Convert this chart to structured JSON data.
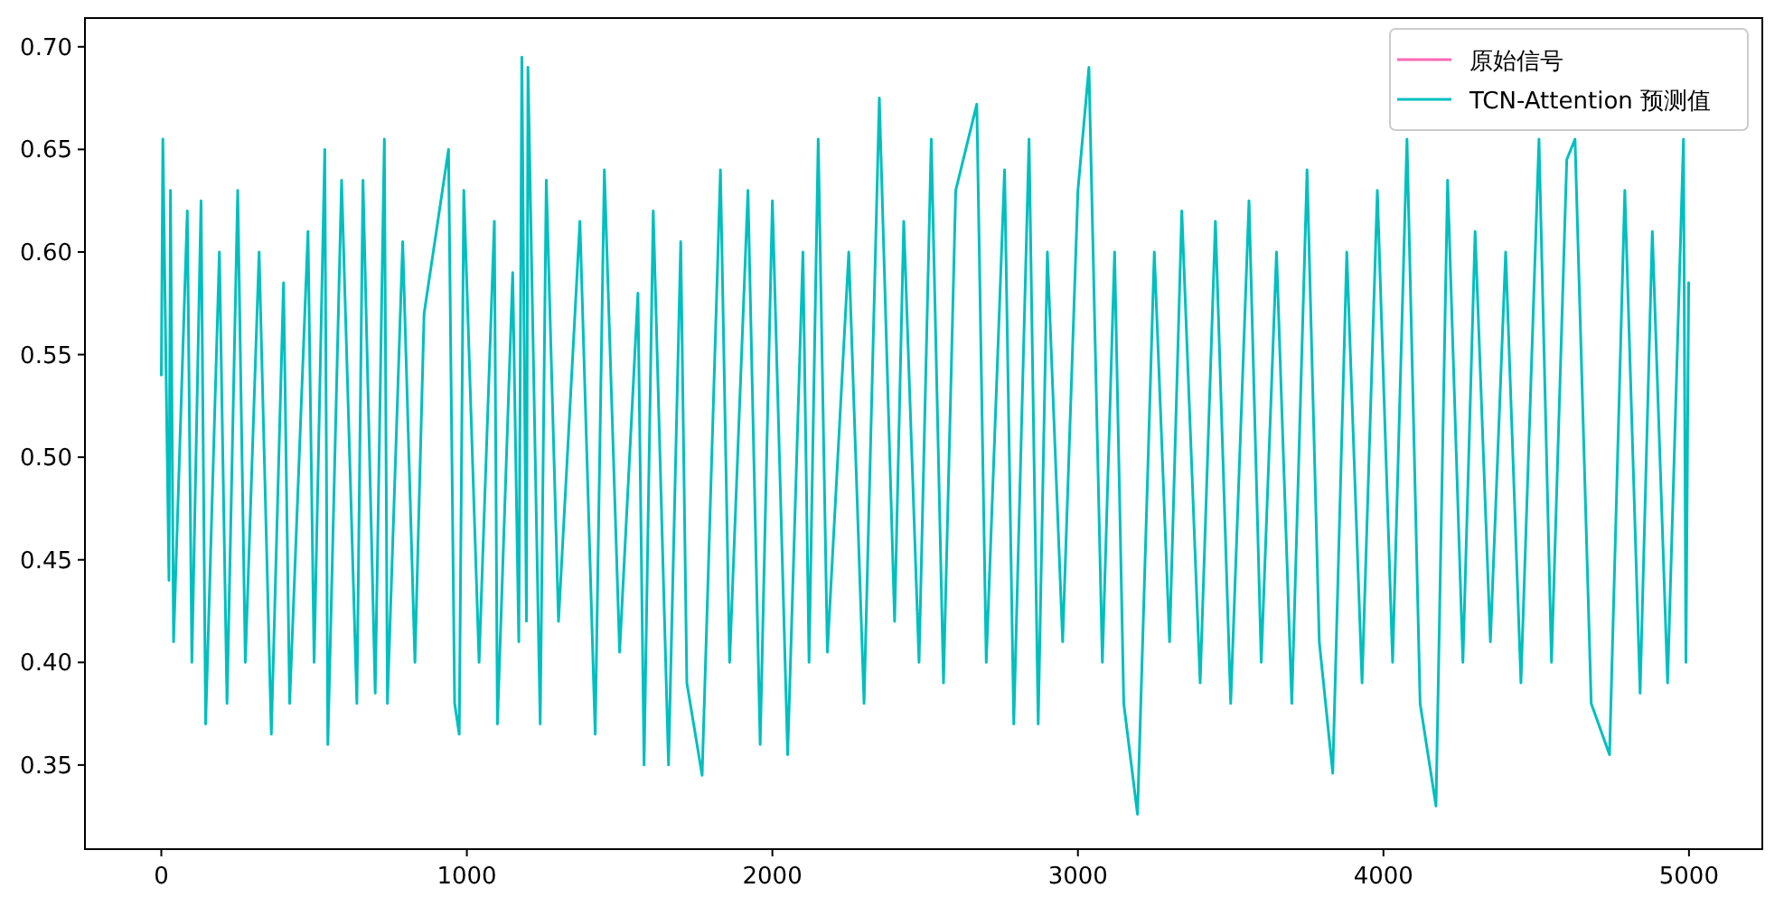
{
  "chart_data": {
    "type": "line",
    "xlim": [
      -250,
      5240
    ],
    "ylim": [
      0.309,
      0.714
    ],
    "xticks": [
      0,
      1000,
      2000,
      3000,
      4000,
      5000
    ],
    "yticks": [
      {
        "value": 0.35,
        "label": "0.35"
      },
      {
        "value": 0.4,
        "label": "0.40"
      },
      {
        "value": 0.45,
        "label": "0.45"
      },
      {
        "value": 0.5,
        "label": "0.50"
      },
      {
        "value": 0.55,
        "label": "0.55"
      },
      {
        "value": 0.6,
        "label": "0.60"
      },
      {
        "value": 0.65,
        "label": "0.65"
      },
      {
        "value": 0.7,
        "label": "0.70"
      }
    ],
    "legend": "top right",
    "series": [
      {
        "name": "原始信号",
        "color": "#ff69b4"
      },
      {
        "name": "TCN-Attention 预测值",
        "color": "#00bfbf",
        "x": [
          0,
          5,
          25,
          30,
          40,
          85,
          100,
          130,
          145,
          190,
          215,
          250,
          275,
          320,
          360,
          400,
          420,
          480,
          500,
          535,
          545,
          590,
          640,
          660,
          700,
          730,
          740,
          790,
          830,
          860,
          940,
          960,
          975,
          990,
          1040,
          1090,
          1100,
          1150,
          1170,
          1180,
          1195,
          1200,
          1240,
          1260,
          1300,
          1370,
          1420,
          1450,
          1500,
          1560,
          1580,
          1610,
          1660,
          1700,
          1720,
          1770,
          1830,
          1860,
          1920,
          1960,
          2000,
          2050,
          2100,
          2120,
          2150,
          2180,
          2250,
          2300,
          2350,
          2400,
          2430,
          2480,
          2520,
          2560,
          2600,
          2669,
          2700,
          2760,
          2790,
          2840,
          2870,
          2900,
          2950,
          3000,
          3036,
          3080,
          3120,
          3150,
          3195,
          3250,
          3300,
          3340,
          3400,
          3450,
          3500,
          3560,
          3600,
          3650,
          3700,
          3750,
          3790,
          3834,
          3880,
          3930,
          3980,
          4030,
          4077,
          4120,
          4172,
          4210,
          4260,
          4300,
          4350,
          4400,
          4450,
          4509,
          4550,
          4600,
          4627,
          4680,
          4740,
          4790,
          4840,
          4880,
          4930,
          4982,
          4990,
          4999
        ],
        "values": [
          0.54,
          0.655,
          0.44,
          0.63,
          0.41,
          0.62,
          0.4,
          0.625,
          0.37,
          0.6,
          0.38,
          0.63,
          0.4,
          0.6,
          0.365,
          0.585,
          0.38,
          0.61,
          0.4,
          0.65,
          0.36,
          0.635,
          0.38,
          0.635,
          0.385,
          0.655,
          0.38,
          0.605,
          0.4,
          0.57,
          0.65,
          0.38,
          0.365,
          0.63,
          0.4,
          0.615,
          0.37,
          0.59,
          0.41,
          0.695,
          0.42,
          0.69,
          0.37,
          0.635,
          0.42,
          0.615,
          0.365,
          0.64,
          0.405,
          0.58,
          0.35,
          0.62,
          0.35,
          0.605,
          0.39,
          0.345,
          0.64,
          0.4,
          0.63,
          0.36,
          0.625,
          0.355,
          0.6,
          0.4,
          0.655,
          0.405,
          0.6,
          0.38,
          0.675,
          0.42,
          0.615,
          0.4,
          0.655,
          0.39,
          0.63,
          0.672,
          0.4,
          0.64,
          0.37,
          0.655,
          0.37,
          0.6,
          0.41,
          0.63,
          0.69,
          0.4,
          0.6,
          0.38,
          0.326,
          0.6,
          0.41,
          0.62,
          0.39,
          0.615,
          0.38,
          0.625,
          0.4,
          0.6,
          0.38,
          0.64,
          0.41,
          0.346,
          0.6,
          0.39,
          0.63,
          0.4,
          0.655,
          0.38,
          0.33,
          0.635,
          0.4,
          0.61,
          0.41,
          0.6,
          0.39,
          0.655,
          0.4,
          0.645,
          0.655,
          0.38,
          0.355,
          0.63,
          0.385,
          0.61,
          0.39,
          0.655,
          0.4,
          0.585
        ]
      }
    ]
  }
}
